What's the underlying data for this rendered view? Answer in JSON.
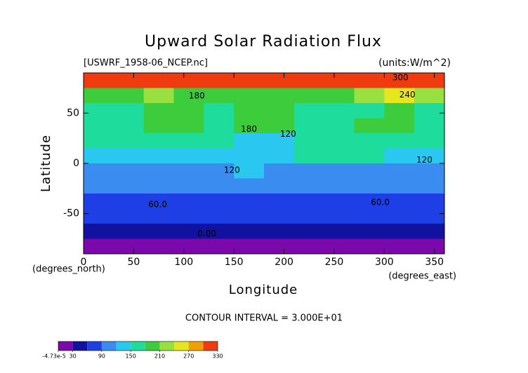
{
  "chart_data": {
    "type": "contour",
    "title": "Upward Solar Radiation Flux",
    "subtitle": "[USWRF_1958-06_NCEP.nc]",
    "units": "(units:W/m^2)",
    "x_label": "Longitude",
    "y_label": "Latitude",
    "x_unit": "(degrees_east)",
    "y_unit": "(degrees_north)",
    "note": "CONTOUR INTERVAL = 3.000E+01",
    "xlim": [
      0,
      360
    ],
    "ylim": [
      -90,
      90
    ],
    "xticks": [
      0,
      50,
      100,
      150,
      200,
      250,
      300,
      350
    ],
    "yticks": [
      -50,
      0,
      50
    ],
    "lon_edges": [
      0,
      30,
      60,
      90,
      120,
      150,
      180,
      210,
      240,
      270,
      300,
      330,
      360
    ],
    "lat_edges": [
      90,
      75,
      60,
      45,
      30,
      15,
      0,
      -15,
      -30,
      -45,
      -60,
      -75,
      -90
    ],
    "values": [
      [
        305,
        305,
        305,
        305,
        305,
        305,
        305,
        305,
        305,
        315,
        315,
        305
      ],
      [
        200,
        190,
        210,
        200,
        190,
        200,
        190,
        200,
        190,
        230,
        245,
        210
      ],
      [
        170,
        170,
        180,
        190,
        170,
        180,
        185,
        170,
        170,
        170,
        180,
        170
      ],
      [
        160,
        170,
        200,
        190,
        170,
        180,
        190,
        170,
        160,
        180,
        185,
        170
      ],
      [
        150,
        160,
        170,
        170,
        160,
        140,
        125,
        150,
        160,
        155,
        160,
        160
      ],
      [
        140,
        130,
        140,
        130,
        130,
        140,
        140,
        150,
        150,
        150,
        140,
        130
      ],
      [
        110,
        100,
        110,
        100,
        110,
        120,
        110,
        110,
        100,
        110,
        100,
        100
      ],
      [
        95,
        95,
        100,
        95,
        100,
        100,
        100,
        100,
        95,
        100,
        95,
        95
      ],
      [
        80,
        80,
        80,
        80,
        80,
        80,
        80,
        80,
        80,
        80,
        80,
        80
      ],
      [
        65,
        65,
        65,
        65,
        65,
        65,
        65,
        65,
        65,
        65,
        65,
        65
      ],
      [
        40,
        40,
        40,
        40,
        40,
        40,
        40,
        40,
        40,
        40,
        40,
        40
      ],
      [
        10,
        10,
        10,
        10,
        10,
        10,
        10,
        10,
        10,
        10,
        10,
        10
      ]
    ],
    "contour_labels": [
      {
        "text": "300",
        "lon": 316,
        "lat": 85
      },
      {
        "text": "240",
        "lon": 323,
        "lat": 68
      },
      {
        "text": "180",
        "lon": 113,
        "lat": 67
      },
      {
        "text": "180",
        "lon": 165,
        "lat": 34
      },
      {
        "text": "120",
        "lon": 204,
        "lat": 29
      },
      {
        "text": "120",
        "lon": 148,
        "lat": -7
      },
      {
        "text": "120",
        "lon": 340,
        "lat": 3
      },
      {
        "text": "60.0",
        "lon": 74,
        "lat": -41
      },
      {
        "text": "60.0",
        "lon": 296,
        "lat": -39
      },
      {
        "text": "0.00",
        "lon": 123,
        "lat": -70
      }
    ],
    "colorbar": {
      "levels": [
        -4.73e-05,
        30,
        60,
        90,
        120,
        150,
        180,
        210,
        240,
        270,
        300,
        330
      ],
      "colors": [
        "#7a08aa",
        "#1212a0",
        "#1e3ee6",
        "#3a8cf0",
        "#2ac8f0",
        "#1edc9c",
        "#3ccc3c",
        "#98e040",
        "#e6e61e",
        "#f0a000",
        "#f03a10"
      ],
      "ticks": [
        {
          "value": -4.73e-05,
          "label": "-4.73e-5"
        },
        30,
        90,
        150,
        210,
        270,
        330
      ]
    }
  }
}
